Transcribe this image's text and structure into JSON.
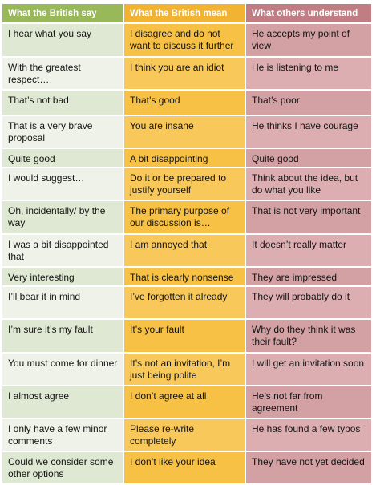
{
  "header": {
    "col1": "What the British say",
    "col2": "What the British mean",
    "col3": "What others understand"
  },
  "rows": [
    {
      "say": "I hear what you say",
      "mean": "I disagree and do not want to discuss it further",
      "understand": "He accepts my point of view"
    },
    {
      "say": "With the greatest respect…",
      "mean": "I think you are an idiot",
      "understand": "He is listening to me"
    },
    {
      "say": "That’s not bad",
      "mean": "That’s good",
      "understand": "That’s poor"
    },
    {
      "say": "That is a very brave proposal",
      "mean": "You are insane",
      "understand": "He thinks I have courage"
    },
    {
      "say": "Quite good",
      "mean": "A bit disappointing",
      "understand": "Quite good"
    },
    {
      "say": "I would suggest…",
      "mean": "Do it or be prepared to justify yourself",
      "understand": "Think about the idea, but do what you like"
    },
    {
      "say": "Oh, incidentally/ by the way",
      "mean": "The primary purpose of our discussion is…",
      "understand": "That is not very important"
    },
    {
      "say": "I was a bit disappointed that",
      "mean": "I am annoyed that",
      "understand": "It doesn’t really matter"
    },
    {
      "say": "Very interesting",
      "mean": "That is clearly nonsense",
      "understand": "They are impressed"
    },
    {
      "say": "I’ll bear it in mind",
      "mean": "I’ve forgotten it already",
      "understand": "They will probably do it"
    },
    {
      "say": "I’m sure it’s my fault",
      "mean": "It’s your fault",
      "understand": "Why do they think it was their fault?"
    },
    {
      "say": "You must come for dinner",
      "mean": "It’s not an invitation, I’m just being polite",
      "understand": "I will get an invitation soon"
    },
    {
      "say": "I almost agree",
      "mean": "I don’t agree at all",
      "understand": "He’s not far from agreement"
    },
    {
      "say": "I only have a few minor comments",
      "mean": "Please re-write completely",
      "understand": "He has found a few typos"
    },
    {
      "say": "Could we consider some other options",
      "mean": "I don’t like your idea",
      "understand": "They have not yet decided"
    }
  ],
  "colors": {
    "header_col1": "#98b85a",
    "header_col2": "#f2b232",
    "header_col3": "#c07e84",
    "cell_col1": "#dfe8d2",
    "cell_col2": "#f6c144",
    "cell_col3": "#d3a0a4"
  }
}
